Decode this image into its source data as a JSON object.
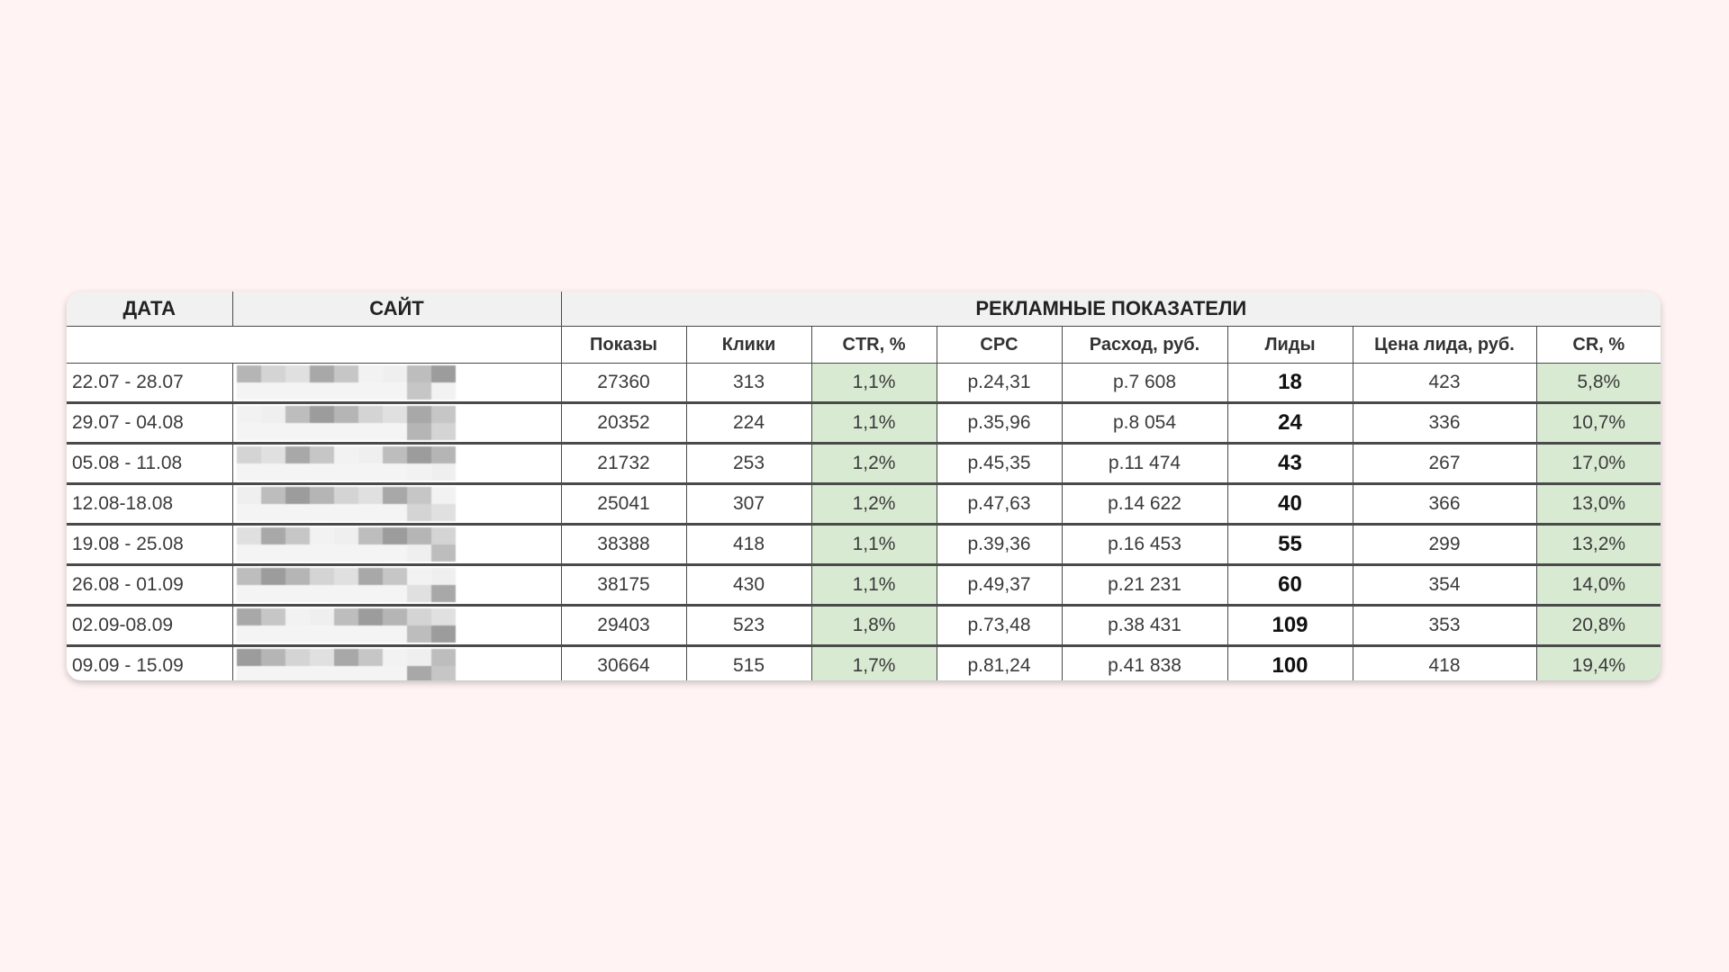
{
  "table": {
    "group_headers": {
      "date": "ДАТА",
      "site": "САЙТ",
      "metrics": "РЕКЛАМНЫЕ ПОКАЗАТЕЛИ"
    },
    "columns": [
      "Показы",
      "Клики",
      "CTR, %",
      "CPC",
      "Расход, руб.",
      "Лиды",
      "Цена лида, руб.",
      "CR, %"
    ],
    "highlight_color": "#d9ead3",
    "rows": [
      {
        "date": "22.07 - 28.07",
        "shows": "27360",
        "clicks": "313",
        "ctr": "1,1%",
        "cpc": "р.24,31",
        "spend": "р.7 608",
        "leads": "18",
        "lead_price": "423",
        "cr": "5,8%"
      },
      {
        "date": "29.07 - 04.08",
        "shows": "20352",
        "clicks": "224",
        "ctr": "1,1%",
        "cpc": "р.35,96",
        "spend": "р.8 054",
        "leads": "24",
        "lead_price": "336",
        "cr": "10,7%"
      },
      {
        "date": "05.08 - 11.08",
        "shows": "21732",
        "clicks": "253",
        "ctr": "1,2%",
        "cpc": "р.45,35",
        "spend": "р.11 474",
        "leads": "43",
        "lead_price": "267",
        "cr": "17,0%"
      },
      {
        "date": "12.08-18.08",
        "shows": "25041",
        "clicks": "307",
        "ctr": "1,2%",
        "cpc": "р.47,63",
        "spend": "р.14 622",
        "leads": "40",
        "lead_price": "366",
        "cr": "13,0%"
      },
      {
        "date": "19.08 - 25.08",
        "shows": "38388",
        "clicks": "418",
        "ctr": "1,1%",
        "cpc": "р.39,36",
        "spend": "р.16 453",
        "leads": "55",
        "lead_price": "299",
        "cr": "13,2%"
      },
      {
        "date": "26.08 - 01.09",
        "shows": "38175",
        "clicks": "430",
        "ctr": "1,1%",
        "cpc": "р.49,37",
        "spend": "р.21 231",
        "leads": "60",
        "lead_price": "354",
        "cr": "14,0%"
      },
      {
        "date": "02.09-08.09",
        "shows": "29403",
        "clicks": "523",
        "ctr": "1,8%",
        "cpc": "р.73,48",
        "spend": "р.38 431",
        "leads": "109",
        "lead_price": "353",
        "cr": "20,8%"
      },
      {
        "date": "09.09 - 15.09",
        "shows": "30664",
        "clicks": "515",
        "ctr": "1,7%",
        "cpc": "р.81,24",
        "spend": "р.41 838",
        "leads": "100",
        "lead_price": "418",
        "cr": "19,4%"
      }
    ]
  }
}
